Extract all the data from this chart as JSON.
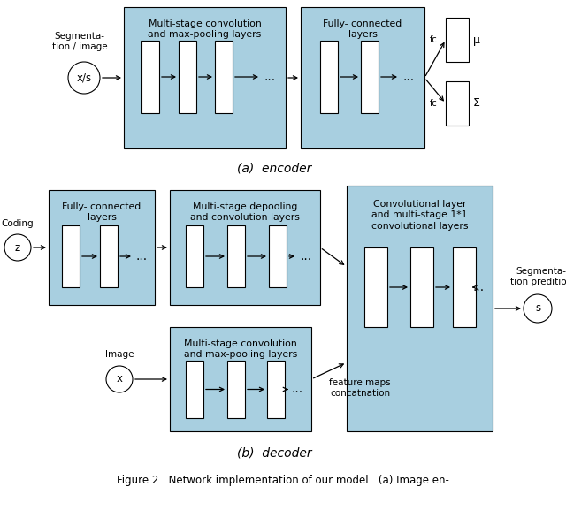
{
  "bg_color": "#ffffff",
  "blue_box_color": "#a8cfe0",
  "white_rect_color": "#ffffff",
  "arrow_color": "#000000",
  "text_color": "#000000",
  "encoder": {
    "title": "(a)  encoder",
    "input_label": "Segmenta-\ntion / image",
    "input_circle": "x/s",
    "box1_label": "Multi-stage convolution\nand max-pooling layers",
    "box2_label": "Fully- connected\nlayers",
    "output_mu": "μ",
    "output_sigma": "Σ",
    "fc_label": "fc"
  },
  "decoder": {
    "title": "(b)  decoder",
    "input_label": "Coding",
    "input_circle": "z",
    "box1_label": "Fully- connected\nlayers",
    "box2_label": "Multi-stage depooling\nand convolution layers",
    "box3_label": "Multi-stage convolution\nand max-pooling layers",
    "box4_label": "Convolutional layer\nand multi-stage 1*1\nconvolutional layers",
    "image_label": "Image",
    "image_circle": "x",
    "concat_label": "feature maps\nconcatnation",
    "output_label": "Segmenta-\ntion predition",
    "output_circle": "s"
  },
  "figure_caption": "Figure 2.  Network implementation of our model.  (a) Image en-"
}
